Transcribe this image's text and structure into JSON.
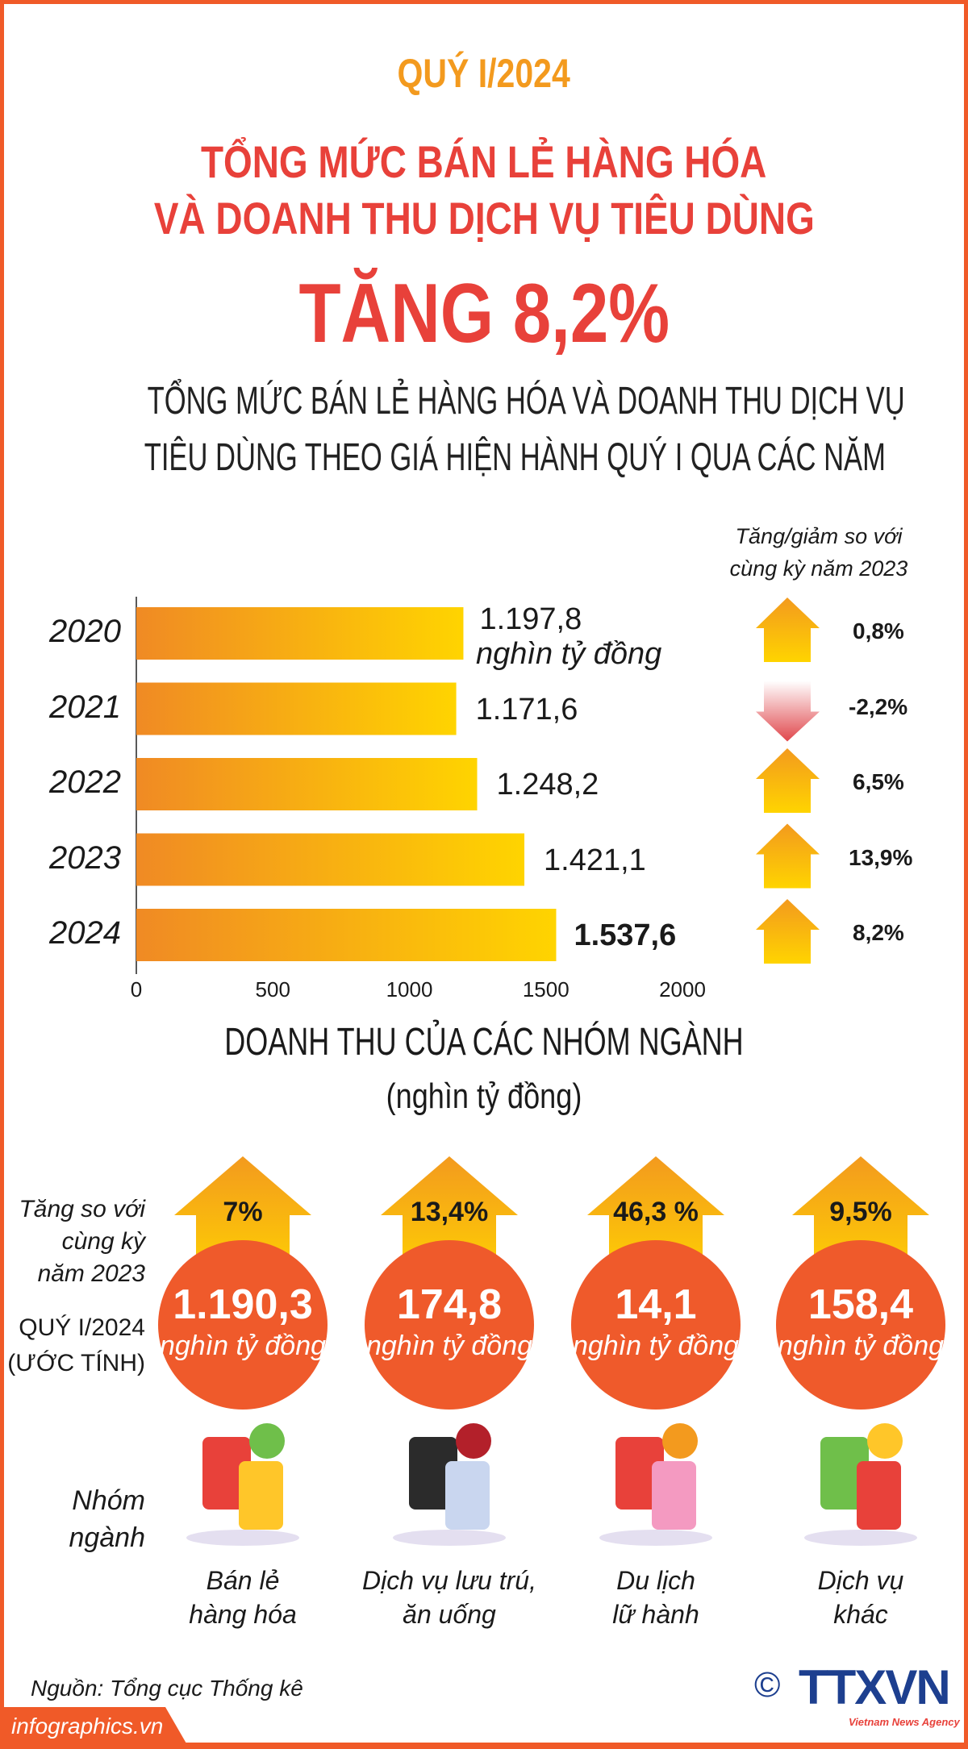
{
  "header": {
    "period": "QUÝ I/2024",
    "title_line1": "TỔNG MỨC BÁN LẺ HÀNG HÓA",
    "title_line2": "VÀ DOANH THU DỊCH VỤ TIÊU DÙNG",
    "headline": "TĂNG 8,2%"
  },
  "colors": {
    "accent_orange": "#f39a1e",
    "title_red": "#e8413a",
    "circle_orange": "#ef5a2b",
    "bar_start": "#f08a24",
    "bar_end": "#ffd400",
    "down_arrow": "#e0474c"
  },
  "chart_data": {
    "type": "bar",
    "orientation": "horizontal",
    "title_line1": "TỔNG MỨC BÁN LẺ HÀNG HÓA VÀ DOANH THU DỊCH VỤ",
    "title_line2": "TIÊU DÙNG THEO GIÁ HIỆN HÀNH QUÝ I QUA CÁC NĂM",
    "categories": [
      "2020",
      "2021",
      "2022",
      "2023",
      "2024"
    ],
    "values": [
      1197.8,
      1171.6,
      1248.2,
      1421.1,
      1537.6
    ],
    "value_labels": [
      "1.197,8",
      "1.171,6",
      "1.248,2",
      "1.421,1",
      "1.537,6"
    ],
    "unit_label": "nghìn tỷ đồng",
    "xlim": [
      0,
      2000
    ],
    "xticks": [
      "0",
      "500",
      "1000",
      "1500",
      "2000"
    ],
    "change_header_line1": "Tăng/giảm so với",
    "change_header_line2": "cùng kỳ năm 2023",
    "changes": [
      0.8,
      -2.2,
      6.5,
      13.9,
      8.2
    ],
    "change_labels": [
      "0,8%",
      "-2,2%",
      "6,5%",
      "13,9%",
      "8,2%"
    ],
    "grid": false
  },
  "groups_section": {
    "heading": "DOANH THU CỦA CÁC NHÓM NGÀNH",
    "heading_unit": "(nghìn tỷ đồng)",
    "label_growth": [
      "Tăng so với",
      "cùng kỳ",
      "năm 2023"
    ],
    "label_value": [
      "QUÝ I/2024",
      "(ƯỚC TÍNH)"
    ],
    "label_group": [
      "Nhóm",
      "ngành"
    ],
    "unit": "nghìn tỷ đồng",
    "groups": [
      {
        "growth": "7%",
        "value": "1.190,3",
        "name1": "Bán lẻ",
        "name2": "hàng hóa",
        "icon": "shop-basket-icon"
      },
      {
        "growth": "13,4%",
        "value": "174,8",
        "name1": "Dịch vụ lưu trú,",
        "name2": "ăn uống",
        "icon": "restaurant-dining-icon"
      },
      {
        "growth": "46,3 %",
        "value": "14,1",
        "name1": "Du lịch",
        "name2": "lữ hành",
        "icon": "travelers-luggage-icon"
      },
      {
        "growth": "9,5%",
        "value": "158,4",
        "name1": "Dịch vụ",
        "name2": "khác",
        "icon": "charts-services-icon"
      }
    ]
  },
  "footer": {
    "source": "Nguồn: Tổng cục Thống kê",
    "site": "infographics.vn",
    "logo": "TTXVN",
    "logo_sub": "Vietnam News Agency",
    "copyright": "©"
  }
}
